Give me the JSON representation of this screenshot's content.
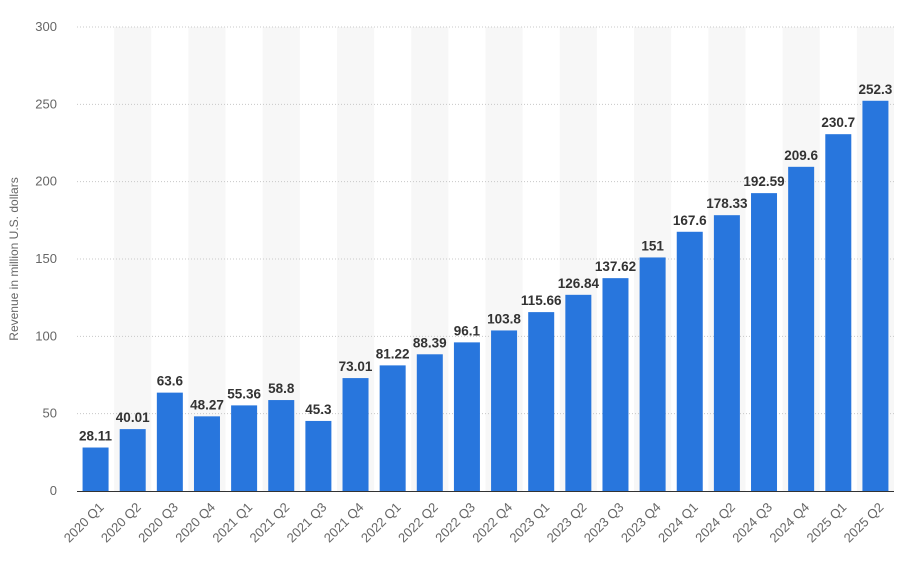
{
  "chart_data": {
    "type": "bar",
    "title": "",
    "xlabel": "",
    "ylabel": "Revenue in million U.S. dollars",
    "ylim": [
      0,
      300
    ],
    "yticks": [
      0,
      50,
      100,
      150,
      200,
      250,
      300
    ],
    "grid": true,
    "legend": "none",
    "bar_color": "#2876dd",
    "categories": [
      "2020 Q1",
      "2020 Q2",
      "2020 Q3",
      "2020 Q4",
      "2021 Q1",
      "2021 Q2",
      "2021 Q3",
      "2021 Q4",
      "2022 Q1",
      "2022 Q2",
      "2022 Q3",
      "2022 Q4",
      "2023 Q1",
      "2023 Q2",
      "2023 Q3",
      "2023 Q4",
      "2024 Q1",
      "2024 Q2",
      "2024 Q3",
      "2024 Q4",
      "2025 Q1",
      "2025 Q2"
    ],
    "values": [
      28.11,
      40.01,
      63.6,
      48.27,
      55.36,
      58.8,
      45.3,
      73.01,
      81.22,
      88.39,
      96.1,
      103.8,
      115.66,
      126.84,
      137.62,
      151,
      167.6,
      178.33,
      192.59,
      209.6,
      230.7,
      252.3
    ]
  }
}
